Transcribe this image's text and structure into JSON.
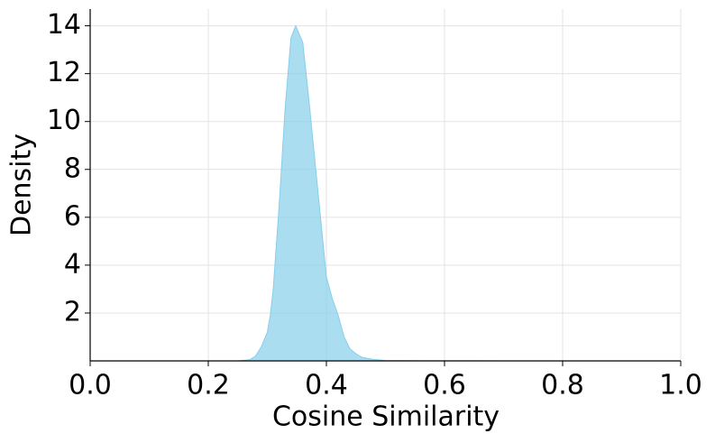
{
  "chart_data": {
    "type": "area",
    "x_label": "Cosine Similarity",
    "y_label": "Density",
    "x": [
      0.25,
      0.27,
      0.28,
      0.29,
      0.3,
      0.305,
      0.31,
      0.32,
      0.33,
      0.34,
      0.348,
      0.36,
      0.37,
      0.38,
      0.39,
      0.4,
      0.41,
      0.42,
      0.43,
      0.44,
      0.45,
      0.46,
      0.48,
      0.5,
      0.55,
      0.65,
      0.7
    ],
    "values": [
      0,
      0.05,
      0.2,
      0.6,
      1.2,
      1.9,
      3,
      6.5,
      10.5,
      13.5,
      14,
      13.3,
      11,
      8.5,
      6,
      3.5,
      2.6,
      1.9,
      1,
      0.5,
      0.3,
      0.15,
      0.06,
      0.02,
      0.01,
      0.005,
      0
    ],
    "color": "#87ceeb",
    "xlim": [
      0,
      1
    ],
    "ylim": [
      0,
      14.7
    ],
    "xticks": [
      {
        "value": 0,
        "label": "0.0"
      },
      0.2,
      0.4,
      0.6,
      0.8,
      {
        "value": 1,
        "label": "1.0"
      }
    ],
    "yticks": [
      2,
      4,
      6,
      8,
      10,
      12,
      14
    ],
    "grid": true
  }
}
